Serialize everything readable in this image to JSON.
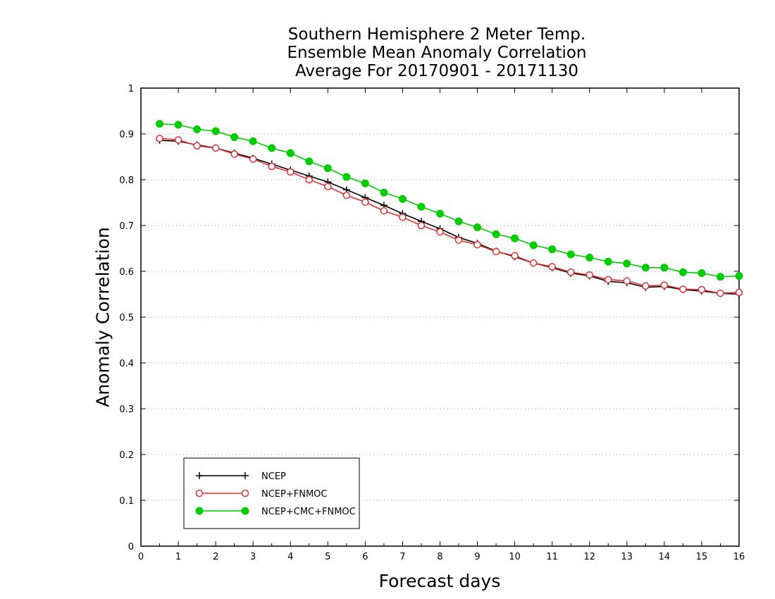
{
  "chart_data": {
    "type": "line",
    "title": [
      "Southern Hemisphere 2 Meter Temp.",
      "Ensemble Mean Anomaly Correlation",
      "Average For 20170901 - 20171130"
    ],
    "xlabel": "Forecast days",
    "ylabel": "Anomaly Correlation",
    "xlim": [
      0,
      16
    ],
    "ylim": [
      0,
      1
    ],
    "xticks": [
      0,
      1,
      2,
      3,
      4,
      5,
      6,
      7,
      8,
      9,
      10,
      11,
      12,
      13,
      14,
      15,
      16
    ],
    "yticks": [
      "0",
      "0.1",
      "0.2",
      "0.3",
      "0.4",
      "0.5",
      "0.6",
      "0.7",
      "0.8",
      "0.9",
      "1"
    ],
    "grid": true,
    "legend_position": "bottom-left",
    "x": [
      0.5,
      1,
      1.5,
      2,
      2.5,
      3,
      3.5,
      4,
      4.5,
      5,
      5.5,
      6,
      6.5,
      7,
      7.5,
      8,
      8.5,
      9,
      9.5,
      10,
      10.5,
      11,
      11.5,
      12,
      12.5,
      13,
      13.5,
      14,
      14.5,
      15,
      15.5,
      16
    ],
    "series": [
      {
        "name": "NCEP",
        "color": "#000000",
        "marker": "plus",
        "values": [
          0.886,
          0.884,
          0.876,
          0.869,
          0.858,
          0.847,
          0.834,
          0.821,
          0.808,
          0.795,
          0.778,
          0.761,
          0.744,
          0.726,
          0.709,
          0.693,
          0.674,
          0.661,
          0.644,
          0.632,
          0.618,
          0.608,
          0.596,
          0.59,
          0.578,
          0.575,
          0.565,
          0.567,
          0.56,
          0.557,
          0.552,
          0.55
        ]
      },
      {
        "name": "NCEP+FNMOC",
        "color": "#e03030",
        "marker": "open-circle",
        "values": [
          0.89,
          0.887,
          0.874,
          0.869,
          0.856,
          0.845,
          0.829,
          0.817,
          0.8,
          0.785,
          0.766,
          0.751,
          0.732,
          0.718,
          0.7,
          0.686,
          0.668,
          0.658,
          0.643,
          0.634,
          0.618,
          0.61,
          0.598,
          0.592,
          0.582,
          0.579,
          0.568,
          0.57,
          0.561,
          0.56,
          0.552,
          0.554
        ]
      },
      {
        "name": "NCEP+CMC+FNMOC",
        "color": "#00cc00",
        "marker": "filled-circle",
        "values": [
          0.922,
          0.92,
          0.91,
          0.906,
          0.893,
          0.884,
          0.869,
          0.858,
          0.84,
          0.825,
          0.806,
          0.792,
          0.772,
          0.758,
          0.741,
          0.726,
          0.709,
          0.696,
          0.681,
          0.672,
          0.657,
          0.648,
          0.637,
          0.63,
          0.621,
          0.617,
          0.608,
          0.608,
          0.598,
          0.596,
          0.588,
          0.59
        ]
      }
    ]
  }
}
